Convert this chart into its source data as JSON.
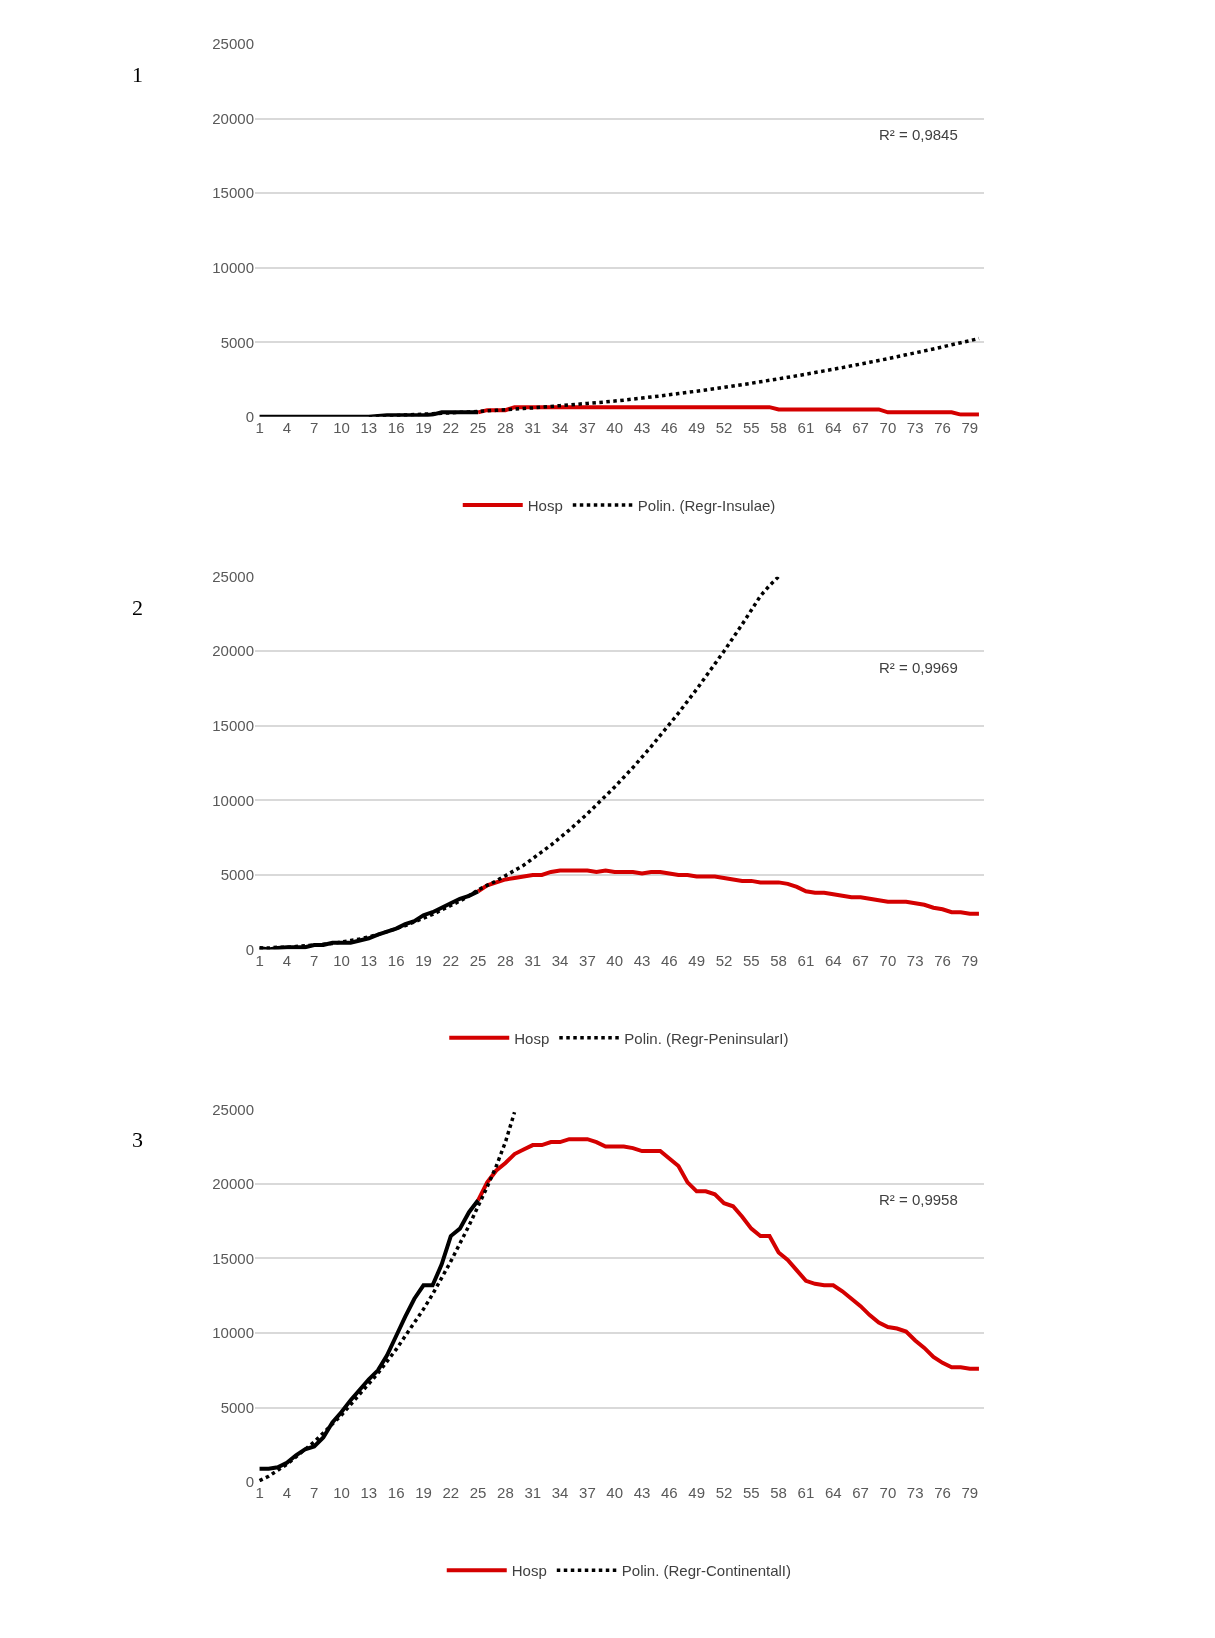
{
  "chart_data": [
    {
      "type": "line",
      "annotations": [
        "1",
        "R² = 0,9845"
      ],
      "ylim": [
        0,
        25000
      ],
      "yticks": [
        0,
        5000,
        10000,
        15000,
        20000,
        25000
      ],
      "grid": "y",
      "legend": "bottom",
      "marker": "none",
      "categories": [
        "1",
        null,
        null,
        "4",
        null,
        null,
        "7",
        null,
        null,
        "10",
        null,
        null,
        "13",
        null,
        null,
        "16",
        null,
        null,
        "19",
        null,
        null,
        "22",
        null,
        null,
        "25",
        null,
        null,
        "28",
        null,
        null,
        "31",
        null,
        null,
        "34",
        null,
        null,
        "37",
        null,
        null,
        "40",
        null,
        null,
        "43",
        null,
        null,
        "46",
        null,
        null,
        "49",
        null,
        null,
        "52",
        null,
        null,
        "55",
        null,
        null,
        "58",
        null,
        null,
        "61",
        null,
        null,
        "64",
        null,
        null,
        "67",
        null,
        null,
        "70",
        null,
        null,
        "73",
        null,
        null,
        "76",
        null,
        null,
        "79",
        null
      ],
      "series": [
        {
          "name": "Hosp",
          "color": "#d40000",
          "line_style": "solid",
          "values": [
            null,
            null,
            null,
            null,
            null,
            null,
            null,
            null,
            null,
            null,
            null,
            null,
            null,
            null,
            null,
            null,
            null,
            null,
            null,
            null,
            null,
            null,
            null,
            null,
            300,
            450,
            450,
            450,
            650,
            650,
            650,
            650,
            650,
            650,
            650,
            650,
            650,
            650,
            650,
            650,
            650,
            650,
            650,
            650,
            650,
            650,
            650,
            650,
            650,
            650,
            650,
            650,
            650,
            650,
            650,
            650,
            650,
            500,
            500,
            500,
            500,
            500,
            500,
            500,
            500,
            500,
            500,
            500,
            500,
            300,
            300,
            300,
            300,
            300,
            300,
            300,
            300,
            150,
            150,
            150
          ]
        },
        {
          "color": "#000000",
          "line_style": "solid",
          "values": [
            0,
            0,
            0,
            0,
            0,
            0,
            0,
            0,
            0,
            0,
            0,
            0,
            0,
            50,
            100,
            100,
            100,
            100,
            100,
            150,
            300,
            300,
            300,
            300,
            300,
            null,
            null,
            null,
            null,
            null,
            null,
            null,
            null,
            null,
            null,
            null,
            null,
            null,
            null,
            null,
            null,
            null,
            null,
            null,
            null,
            null,
            null,
            null,
            null,
            null,
            null,
            null,
            null,
            null,
            null,
            null,
            null,
            null,
            null,
            null,
            null,
            null,
            null,
            null,
            null,
            null,
            null,
            null,
            null,
            null,
            null,
            null,
            null,
            null,
            null,
            null,
            null,
            null,
            null,
            null
          ]
        },
        {
          "name": "Polin. (Regr-Insulae)",
          "color": "#000000",
          "line_style": "dotted",
          "values": [
            null,
            null,
            null,
            null,
            null,
            null,
            null,
            null,
            null,
            null,
            null,
            null,
            0,
            30,
            60,
            90,
            120,
            150,
            180,
            210,
            240,
            270,
            300,
            330,
            360,
            400,
            440,
            480,
            520,
            560,
            600,
            650,
            700,
            750,
            800,
            850,
            900,
            950,
            1000,
            1060,
            1120,
            1190,
            1260,
            1330,
            1400,
            1480,
            1560,
            1640,
            1720,
            1800,
            1890,
            1980,
            2070,
            2160,
            2250,
            2350,
            2450,
            2550,
            2650,
            2750,
            2860,
            2970,
            3080,
            3190,
            3300,
            3420,
            3540,
            3660,
            3780,
            3900,
            4030,
            4160,
            4290,
            4420,
            4550,
            4690,
            4830,
            4970,
            5110,
            5250
          ]
        }
      ]
    },
    {
      "type": "line",
      "annotations": [
        "2",
        "R² = 0,9969"
      ],
      "ylim": [
        0,
        25000
      ],
      "yticks": [
        0,
        5000,
        10000,
        15000,
        20000,
        25000
      ],
      "grid": "y",
      "legend": "bottom",
      "marker": "none",
      "categories": [
        "1",
        null,
        null,
        "4",
        null,
        null,
        "7",
        null,
        null,
        "10",
        null,
        null,
        "13",
        null,
        null,
        "16",
        null,
        null,
        "19",
        null,
        null,
        "22",
        null,
        null,
        "25",
        null,
        null,
        "28",
        null,
        null,
        "31",
        null,
        null,
        "34",
        null,
        null,
        "37",
        null,
        null,
        "40",
        null,
        null,
        "43",
        null,
        null,
        "46",
        null,
        null,
        "49",
        null,
        null,
        "52",
        null,
        null,
        "55",
        null,
        null,
        "58",
        null,
        null,
        "61",
        null,
        null,
        "64",
        null,
        null,
        "67",
        null,
        null,
        "70",
        null,
        null,
        "73",
        null,
        null,
        "76",
        null,
        null,
        "79",
        null
      ],
      "series": [
        {
          "name": "Hosp",
          "color": "#d40000",
          "line_style": "solid",
          "values": [
            null,
            null,
            null,
            null,
            null,
            null,
            null,
            null,
            null,
            null,
            null,
            null,
            null,
            null,
            null,
            null,
            null,
            null,
            null,
            null,
            null,
            null,
            null,
            null,
            3900,
            4300,
            4500,
            4700,
            4800,
            4900,
            5000,
            5000,
            5200,
            5300,
            5300,
            5300,
            5300,
            5200,
            5300,
            5200,
            5200,
            5200,
            5100,
            5200,
            5200,
            5100,
            5000,
            5000,
            4900,
            4900,
            4900,
            4800,
            4700,
            4600,
            4600,
            4500,
            4500,
            4500,
            4400,
            4200,
            3900,
            3800,
            3800,
            3700,
            3600,
            3500,
            3500,
            3400,
            3300,
            3200,
            3200,
            3200,
            3100,
            3000,
            2800,
            2700,
            2500,
            2500,
            2400,
            2400
          ]
        },
        {
          "color": "#000000",
          "line_style": "solid",
          "values": [
            100,
            0,
            100,
            150,
            150,
            150,
            300,
            300,
            450,
            450,
            450,
            600,
            750,
            1000,
            1200,
            1400,
            1700,
            1900,
            2300,
            2500,
            2800,
            3100,
            3400,
            3600,
            3900,
            null,
            null,
            null,
            null,
            null,
            null,
            null,
            null,
            null,
            null,
            null,
            null,
            null,
            null,
            null,
            null,
            null,
            null,
            null,
            null,
            null,
            null,
            null,
            null,
            null,
            null,
            null,
            null,
            null,
            null,
            null,
            null,
            null,
            null,
            null,
            null,
            null,
            null,
            null,
            null,
            null,
            null,
            null,
            null,
            null,
            null,
            null,
            null,
            null,
            null,
            null,
            null,
            null,
            null,
            null
          ]
        },
        {
          "name": "Polin. (Regr-PeninsularI)",
          "color": "#000000",
          "line_style": "dotted",
          "values": [
            100,
            100,
            150,
            150,
            200,
            250,
            300,
            350,
            400,
            500,
            600,
            700,
            850,
            1000,
            1200,
            1400,
            1600,
            1850,
            2100,
            2350,
            2650,
            2950,
            3250,
            3600,
            4000,
            4300,
            4600,
            4950,
            5300,
            5650,
            6100,
            6550,
            7000,
            7500,
            8000,
            8550,
            9100,
            9700,
            10300,
            10900,
            11550,
            12200,
            12900,
            13600,
            14350,
            15100,
            15850,
            16650,
            17450,
            18300,
            19150,
            20000,
            20900,
            21800,
            22750,
            23700,
            24400,
            25000,
            null,
            null,
            null,
            null,
            null,
            null,
            null,
            null,
            null,
            null,
            null,
            null,
            null,
            null,
            null,
            null,
            null,
            null,
            null,
            null,
            null,
            null
          ]
        }
      ]
    },
    {
      "type": "line",
      "annotations": [
        "3",
        "R² = 0,9958"
      ],
      "ylim": [
        0,
        25000
      ],
      "yticks": [
        0,
        5000,
        10000,
        15000,
        20000,
        25000
      ],
      "grid": "y",
      "legend": "bottom",
      "marker": "none",
      "categories": [
        "1",
        null,
        null,
        "4",
        null,
        null,
        "7",
        null,
        null,
        "10",
        null,
        null,
        "13",
        null,
        null,
        "16",
        null,
        null,
        "19",
        null,
        null,
        "22",
        null,
        null,
        "25",
        null,
        null,
        "28",
        null,
        null,
        "31",
        null,
        null,
        "34",
        null,
        null,
        "37",
        null,
        null,
        "40",
        null,
        null,
        "43",
        null,
        null,
        "46",
        null,
        null,
        "49",
        null,
        null,
        "52",
        null,
        null,
        "55",
        null,
        null,
        "58",
        null,
        null,
        "61",
        null,
        null,
        "64",
        null,
        null,
        "67",
        null,
        null,
        "70",
        null,
        null,
        "73",
        null,
        null,
        "76",
        null,
        null,
        "79",
        null
      ],
      "series": [
        {
          "name": "Hosp",
          "color": "#d40000",
          "line_style": "solid",
          "values": [
            null,
            null,
            null,
            null,
            null,
            null,
            null,
            null,
            null,
            null,
            null,
            null,
            null,
            null,
            null,
            null,
            null,
            null,
            null,
            null,
            null,
            null,
            null,
            null,
            18900,
            20100,
            20900,
            21400,
            22000,
            22300,
            22600,
            22600,
            22800,
            22800,
            23000,
            23000,
            23000,
            22800,
            22500,
            22500,
            22500,
            22400,
            22200,
            22200,
            22200,
            21700,
            21200,
            20100,
            19500,
            19500,
            19300,
            18700,
            18500,
            17800,
            17000,
            16500,
            16500,
            15400,
            14900,
            14200,
            13500,
            13300,
            13200,
            13200,
            12800,
            12300,
            11800,
            11200,
            10700,
            10400,
            10300,
            10100,
            9500,
            9000,
            8400,
            8000,
            7700,
            7700,
            7600,
            7600
          ]
        },
        {
          "color": "#000000",
          "line_style": "solid",
          "values": [
            900,
            900,
            1000,
            1300,
            1800,
            2200,
            2400,
            3000,
            4000,
            4700,
            5500,
            6200,
            6900,
            7500,
            8500,
            9800,
            11100,
            12300,
            13200,
            13200,
            14600,
            16500,
            17000,
            18100,
            18900,
            null,
            null,
            null,
            null,
            null,
            null,
            null,
            null,
            null,
            null,
            null,
            null,
            null,
            null,
            null,
            null,
            null,
            null,
            null,
            null,
            null,
            null,
            null,
            null,
            null,
            null,
            null,
            null,
            null,
            null,
            null,
            null,
            null,
            null,
            null,
            null,
            null,
            null,
            null,
            null,
            null,
            null,
            null,
            null,
            null,
            null,
            null,
            null,
            null,
            null,
            null,
            null,
            null,
            null,
            null
          ]
        },
        {
          "name": "Polin. (Regr-ContinentalI)",
          "color": "#000000",
          "line_style": "dotted",
          "values": [
            100,
            400,
            800,
            1200,
            1700,
            2200,
            2700,
            3300,
            3900,
            4500,
            5200,
            5900,
            6600,
            7300,
            8100,
            8900,
            9800,
            10700,
            11600,
            12600,
            13700,
            14800,
            16000,
            17200,
            18500,
            19800,
            21200,
            22800,
            24800,
            null,
            null,
            null,
            null,
            null,
            null,
            null,
            null,
            null,
            null,
            null,
            null,
            null,
            null,
            null,
            null,
            null,
            null,
            null,
            null,
            null,
            null,
            null,
            null,
            null,
            null,
            null,
            null,
            null,
            null,
            null,
            null,
            null,
            null,
            null,
            null,
            null,
            null,
            null,
            null,
            null,
            null,
            null,
            null,
            null,
            null,
            null,
            null,
            null,
            null,
            null
          ]
        }
      ]
    }
  ]
}
